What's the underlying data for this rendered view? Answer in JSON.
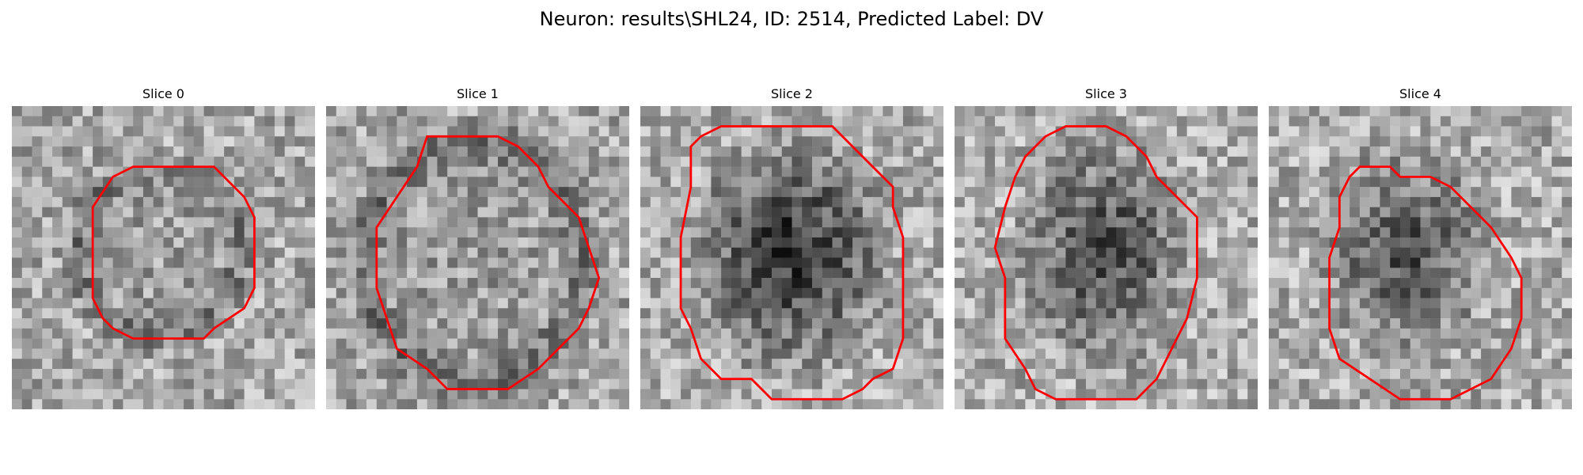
{
  "figure": {
    "title": "Neuron: results\\SHL24, ID: 2514, Predicted Label: DV"
  },
  "panels": [
    {
      "title": "Slice 0"
    },
    {
      "title": "Slice 1"
    },
    {
      "title": "Slice 2"
    },
    {
      "title": "Slice 3"
    },
    {
      "title": "Slice 4"
    }
  ],
  "colors": {
    "contour": "#ff0000",
    "background": "#ffffff"
  }
}
